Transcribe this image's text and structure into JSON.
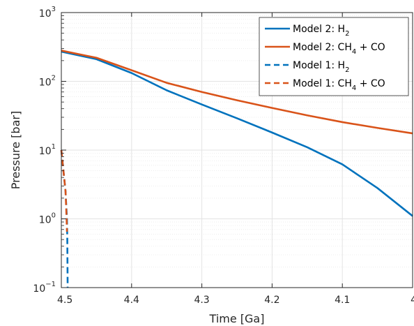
{
  "chart_data": {
    "type": "line",
    "xlabel": "Time [Ga]",
    "ylabel": "Pressure [bar]",
    "xlim": [
      4.5,
      4.0
    ],
    "x_reversed": true,
    "ylim": [
      0.1,
      1000
    ],
    "y_scale": "log",
    "grid": true,
    "minor_grid": true,
    "legend_position": "top-right",
    "x_ticks": [
      4.5,
      4.4,
      4.3,
      4.2,
      4.1,
      4.0
    ],
    "x_tick_labels": [
      "4.5",
      "4.4",
      "4.3",
      "4.2",
      "4.1",
      "4"
    ],
    "y_ticks": [
      {
        "value": 0.1,
        "base": "10",
        "exp": "−1"
      },
      {
        "value": 1,
        "base": "10",
        "exp": "0"
      },
      {
        "value": 10,
        "base": "10",
        "exp": "1"
      },
      {
        "value": 100,
        "base": "10",
        "exp": "2"
      },
      {
        "value": 1000,
        "base": "10",
        "exp": "3"
      }
    ],
    "series": [
      {
        "name": "Model 2: H2",
        "legend_main": "Model 2: H",
        "legend_sub": "2",
        "legend_tail": "",
        "color": "#0072BD",
        "dash": "solid",
        "points": [
          [
            4.5,
            270
          ],
          [
            4.45,
            210
          ],
          [
            4.4,
            132
          ],
          [
            4.35,
            74
          ],
          [
            4.3,
            46
          ],
          [
            4.25,
            29
          ],
          [
            4.2,
            18
          ],
          [
            4.15,
            11
          ],
          [
            4.1,
            6.2
          ],
          [
            4.05,
            2.8
          ],
          [
            4.0,
            1.1
          ]
        ]
      },
      {
        "name": "Model 2: CH4 + CO",
        "legend_main": "Model 2: CH",
        "legend_sub": "4",
        "legend_tail": " + CO",
        "color": "#D95319",
        "dash": "solid",
        "points": [
          [
            4.5,
            280
          ],
          [
            4.45,
            220
          ],
          [
            4.4,
            145
          ],
          [
            4.35,
            95
          ],
          [
            4.3,
            70
          ],
          [
            4.25,
            53
          ],
          [
            4.2,
            41
          ],
          [
            4.15,
            32
          ],
          [
            4.1,
            25.5
          ],
          [
            4.05,
            21
          ],
          [
            4.0,
            17.5
          ]
        ]
      },
      {
        "name": "Model 1: H2",
        "legend_main": "Model 1: H",
        "legend_sub": "2",
        "legend_tail": "",
        "color": "#0072BD",
        "dash": "dashed",
        "points": [
          [
            4.5,
            10
          ],
          [
            4.497,
            5
          ],
          [
            4.494,
            2.5
          ],
          [
            4.492,
            1
          ],
          [
            4.4915,
            0.5
          ],
          [
            4.491,
            0.1
          ]
        ]
      },
      {
        "name": "Model 1: CH4 + CO",
        "legend_main": "Model 1: CH",
        "legend_sub": "4",
        "legend_tail": " + CO",
        "color": "#D95319",
        "dash": "dashed",
        "points": [
          [
            4.5,
            10
          ],
          [
            4.497,
            5
          ],
          [
            4.494,
            2.5
          ],
          [
            4.4925,
            1
          ],
          [
            4.492,
            0.65
          ]
        ]
      }
    ]
  }
}
